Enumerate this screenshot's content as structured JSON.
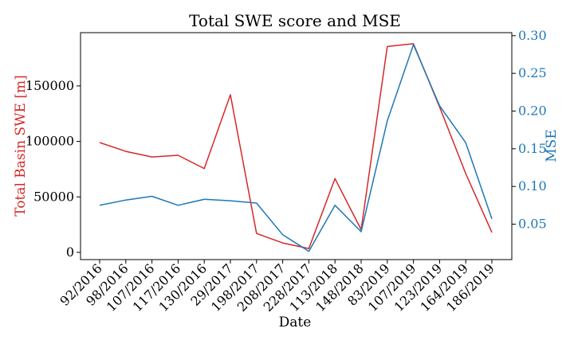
{
  "chart_data": {
    "type": "line",
    "title": "Total SWE score and MSE",
    "xlabel": "Date",
    "ylabel_left": "Total Basin SWE [m]",
    "ylabel_right": "MSE",
    "categories": [
      "92/2016",
      "98/2016",
      "107/2016",
      "117/2016",
      "130/2016",
      "29/2017",
      "198/2017",
      "208/2017",
      "228/2017",
      "113/2018",
      "148/2018",
      "83/2019",
      "107/2019",
      "123/2019",
      "164/2019",
      "186/2019"
    ],
    "yticks_left": [
      "0",
      "50000",
      "100000",
      "150000"
    ],
    "yticks_right": [
      "0.05",
      "0.10",
      "0.15",
      "0.20",
      "0.25",
      "0.30"
    ],
    "ylim_left": [
      -6500,
      198000
    ],
    "ylim_right": [
      0.003,
      0.304
    ],
    "series": [
      {
        "name": "Total Basin SWE",
        "axis": "left",
        "color": "#d62728",
        "values": [
          99000,
          91000,
          86000,
          87500,
          75500,
          142000,
          17000,
          8500,
          3500,
          66500,
          20500,
          185500,
          188000,
          131000,
          71000,
          18000
        ]
      },
      {
        "name": "MSE",
        "axis": "right",
        "color": "#1f77b4",
        "values": [
          0.075,
          0.082,
          0.087,
          0.075,
          0.083,
          0.081,
          0.078,
          0.036,
          0.014,
          0.075,
          0.04,
          0.187,
          0.288,
          0.207,
          0.158,
          0.057
        ]
      }
    ],
    "left_axis_color": "#d62728",
    "right_axis_color": "#1f77b4"
  }
}
